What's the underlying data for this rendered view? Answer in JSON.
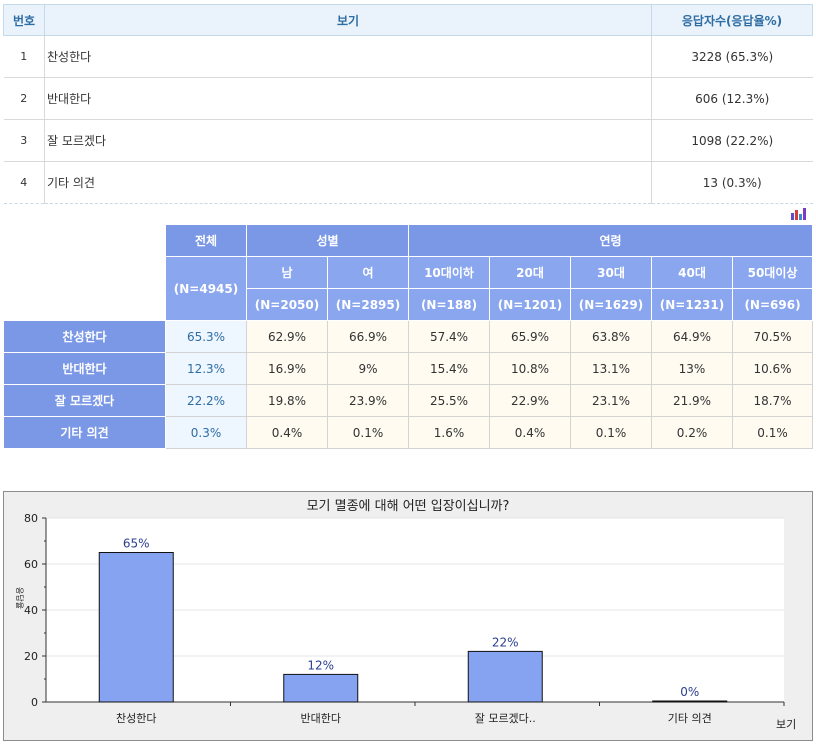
{
  "response_table": {
    "headers": {
      "no": "번호",
      "option": "보기",
      "count": "응답자수(응답율%)"
    },
    "rows": [
      {
        "no": "1",
        "option": "찬성한다",
        "count": "3228 (65.3%)"
      },
      {
        "no": "2",
        "option": "반대한다",
        "count": "606 (12.3%)"
      },
      {
        "no": "3",
        "option": "잘 모르겠다",
        "count": "1098 (22.2%)"
      },
      {
        "no": "4",
        "option": "기타 의견",
        "count": "13 (0.3%)"
      }
    ]
  },
  "crosstab": {
    "total_label": "전체",
    "total_n": "(N=4945)",
    "gender_label": "성별",
    "age_label": "연령",
    "gender_cols": [
      {
        "label": "남",
        "n": "(N=2050)"
      },
      {
        "label": "여",
        "n": "(N=2895)"
      }
    ],
    "age_cols": [
      {
        "label": "10대이하",
        "n": "(N=188)"
      },
      {
        "label": "20대",
        "n": "(N=1201)"
      },
      {
        "label": "30대",
        "n": "(N=1629)"
      },
      {
        "label": "40대",
        "n": "(N=1231)"
      },
      {
        "label": "50대이상",
        "n": "(N=696)"
      }
    ],
    "rows": [
      {
        "label": "찬성한다",
        "total": "65.3%",
        "cells": [
          "62.9%",
          "66.9%",
          "57.4%",
          "65.9%",
          "63.8%",
          "64.9%",
          "70.5%"
        ]
      },
      {
        "label": "반대한다",
        "total": "12.3%",
        "cells": [
          "16.9%",
          "9%",
          "15.4%",
          "10.8%",
          "13.1%",
          "13%",
          "10.6%"
        ]
      },
      {
        "label": "잘 모르겠다",
        "total": "22.2%",
        "cells": [
          "19.8%",
          "23.9%",
          "25.5%",
          "22.9%",
          "23.1%",
          "21.9%",
          "18.7%"
        ]
      },
      {
        "label": "기타 의견",
        "total": "0.3%",
        "cells": [
          "0.4%",
          "0.1%",
          "1.6%",
          "0.4%",
          "0.1%",
          "0.2%",
          "0.1%"
        ]
      }
    ]
  },
  "chart_data": {
    "type": "bar",
    "title": "모기 멸종에 대해 어떤 입장이십니까?",
    "xlabel": "보기",
    "ylabel": "응답율",
    "categories": [
      "찬성한다",
      "반대한다",
      "잘 모르겠다..",
      "기타 의견"
    ],
    "values": [
      65,
      12,
      22,
      0
    ],
    "data_labels": [
      "65%",
      "12%",
      "22%",
      "0%"
    ],
    "yticks": [
      "0",
      "20",
      "40",
      "60",
      "80"
    ],
    "ylim": [
      0,
      80
    ],
    "grid": true,
    "bar_color": "#86a3f2"
  },
  "colors": {
    "header_blue": "#7b98e6",
    "header_text": "#2e6da4"
  },
  "icons": {
    "mini_chart": "bar-chart-icon"
  }
}
